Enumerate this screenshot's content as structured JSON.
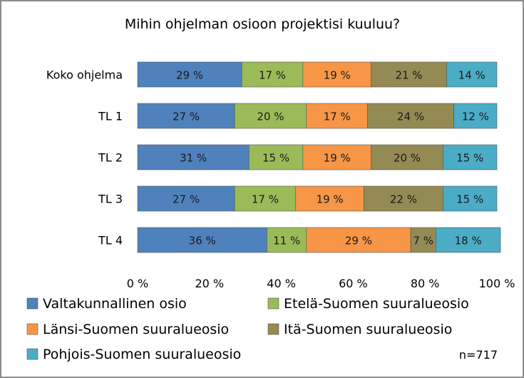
{
  "chart_data": {
    "type": "bar",
    "orientation": "horizontal",
    "stacked": "percent",
    "title": "Mihin ohjelman osioon projektisi kuuluu?",
    "categories": [
      "Koko ohjelma",
      "TL 1",
      "TL 2",
      "TL 3",
      "TL 4"
    ],
    "series": [
      {
        "name": "Valtakunnallinen osio",
        "color": "#4f81bd",
        "values": [
          29,
          27,
          31,
          27,
          36
        ]
      },
      {
        "name": "Etelä-Suomen suuralueosio",
        "color": "#9bbb59",
        "values": [
          17,
          20,
          15,
          17,
          11
        ]
      },
      {
        "name": "Länsi-Suomen suuralueosio",
        "color": "#f79646",
        "values": [
          19,
          17,
          19,
          19,
          29
        ]
      },
      {
        "name": "Itä-Suomen suuralueosio",
        "color": "#948a54",
        "values": [
          21,
          24,
          20,
          22,
          7
        ]
      },
      {
        "name": "Pohjois-Suomen suuralueosio",
        "color": "#4bacc6",
        "values": [
          14,
          12,
          15,
          15,
          18
        ]
      }
    ],
    "data_labels": [
      [
        "29 %",
        "17 %",
        "19 %",
        "21 %",
        "14 %"
      ],
      [
        "27 %",
        "20 %",
        "17 %",
        "24 %",
        "12 %"
      ],
      [
        "31 %",
        "15 %",
        "19 %",
        "20 %",
        "15 %"
      ],
      [
        "27 %",
        "17 %",
        "19 %",
        "22 %",
        "15 %"
      ],
      [
        "36 %",
        "11 %",
        "29 %",
        "7 %",
        "18 %"
      ]
    ],
    "x_ticks": [
      "0 %",
      "20 %",
      "40 %",
      "60 %",
      "80 %",
      "100 %"
    ],
    "xlim": [
      0,
      100
    ],
    "grid": false,
    "legend_position": "bottom",
    "note": "n=717"
  }
}
